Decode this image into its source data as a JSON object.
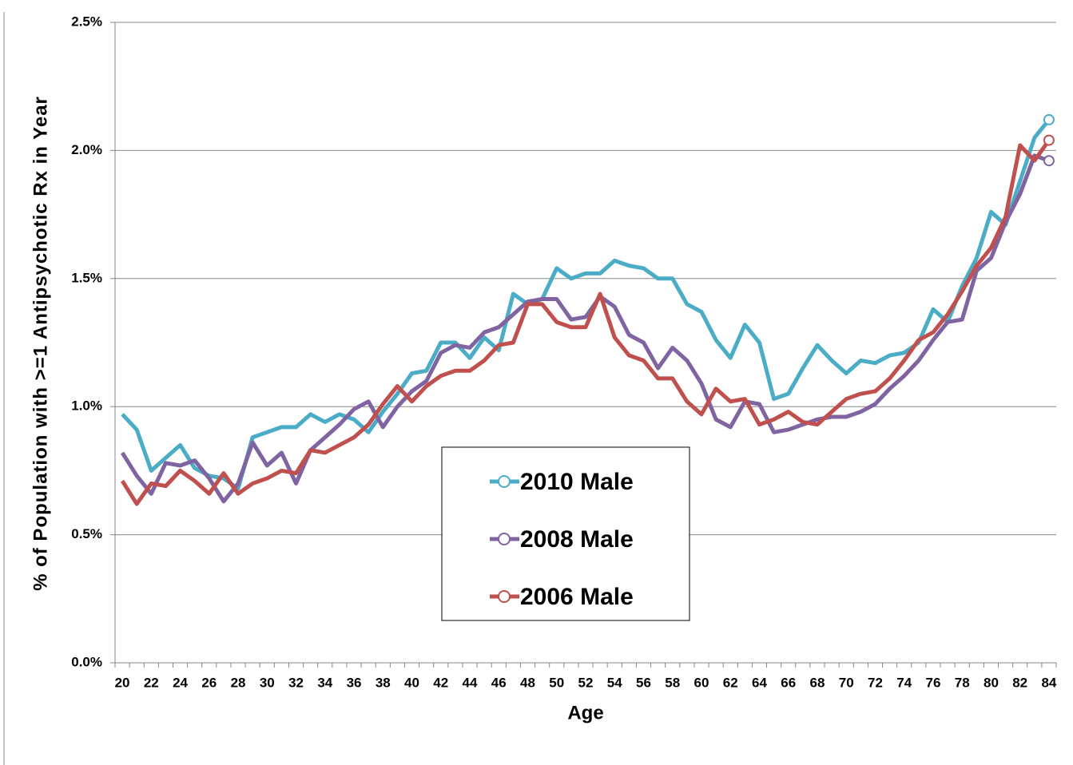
{
  "chart_data": {
    "type": "line",
    "y_label": "% of Population with >=1 Antipsychotic Rx in Year",
    "x_label": "Age",
    "categories": [
      "20",
      null,
      "22",
      null,
      "24",
      null,
      "26",
      null,
      "28",
      null,
      "30",
      null,
      "32",
      null,
      "34",
      null,
      "36",
      null,
      "38",
      null,
      "40",
      null,
      "42",
      null,
      "44",
      null,
      "46",
      null,
      "48",
      null,
      "50",
      null,
      "52",
      null,
      "54",
      null,
      "56",
      null,
      "58",
      null,
      "60",
      null,
      "62",
      null,
      "64",
      null,
      "66",
      null,
      "68",
      null,
      "70",
      null,
      "72",
      null,
      "74",
      null,
      "76",
      null,
      "78",
      null,
      "80",
      null,
      "82",
      null,
      "84"
    ],
    "series": [
      {
        "name": "2010 Male",
        "color": "#4bacc6",
        "values": [
          0.97,
          0.91,
          0.75,
          0.8,
          0.85,
          0.76,
          0.73,
          0.72,
          0.68,
          0.88,
          0.9,
          0.92,
          0.92,
          0.97,
          0.94,
          0.97,
          0.95,
          0.9,
          0.98,
          1.05,
          1.13,
          1.14,
          1.25,
          1.25,
          1.19,
          1.27,
          1.22,
          1.44,
          1.4,
          1.42,
          1.54,
          1.5,
          1.52,
          1.52,
          1.57,
          1.55,
          1.54,
          1.5,
          1.5,
          1.4,
          1.37,
          1.26,
          1.19,
          1.32,
          1.25,
          1.03,
          1.05,
          1.15,
          1.24,
          1.18,
          1.13,
          1.18,
          1.17,
          1.2,
          1.21,
          1.25,
          1.38,
          1.33,
          1.47,
          1.58,
          1.76,
          1.71,
          1.88,
          2.05,
          2.12
        ]
      },
      {
        "name": "2008 Male",
        "color": "#8064a2",
        "values": [
          0.82,
          0.73,
          0.66,
          0.78,
          0.77,
          0.79,
          0.72,
          0.63,
          0.7,
          0.86,
          0.77,
          0.82,
          0.7,
          0.83,
          0.88,
          0.93,
          0.99,
          1.02,
          0.92,
          1.0,
          1.06,
          1.1,
          1.21,
          1.24,
          1.23,
          1.29,
          1.31,
          1.36,
          1.41,
          1.42,
          1.42,
          1.34,
          1.35,
          1.43,
          1.39,
          1.28,
          1.25,
          1.15,
          1.23,
          1.18,
          1.09,
          0.95,
          0.92,
          1.02,
          1.01,
          0.9,
          0.91,
          0.93,
          0.95,
          0.96,
          0.96,
          0.98,
          1.01,
          1.07,
          1.12,
          1.18,
          1.26,
          1.33,
          1.34,
          1.53,
          1.58,
          1.72,
          1.83,
          1.98,
          1.96
        ]
      },
      {
        "name": "2006 Male",
        "color": "#c0504d",
        "values": [
          0.71,
          0.62,
          0.7,
          0.69,
          0.75,
          0.71,
          0.66,
          0.74,
          0.66,
          0.7,
          0.72,
          0.75,
          0.74,
          0.83,
          0.82,
          0.85,
          0.88,
          0.93,
          1.01,
          1.08,
          1.02,
          1.08,
          1.12,
          1.14,
          1.14,
          1.18,
          1.24,
          1.25,
          1.4,
          1.4,
          1.33,
          1.31,
          1.31,
          1.44,
          1.27,
          1.2,
          1.18,
          1.11,
          1.11,
          1.02,
          0.97,
          1.07,
          1.02,
          1.03,
          0.93,
          0.95,
          0.98,
          0.94,
          0.93,
          0.98,
          1.03,
          1.05,
          1.06,
          1.11,
          1.18,
          1.26,
          1.29,
          1.36,
          1.45,
          1.55,
          1.62,
          1.74,
          2.02,
          1.96,
          2.04
        ]
      }
    ],
    "ylim": [
      0,
      2.5
    ],
    "yticks": [
      {
        "value": 0,
        "label": "0.0%"
      },
      {
        "value": 0.5,
        "label": "0.5%"
      },
      {
        "value": 1,
        "label": "1.0%"
      },
      {
        "value": 1.5,
        "label": "1.5%"
      },
      {
        "value": 2,
        "label": "2.0%"
      },
      {
        "value": 2.5,
        "label": "2.5%"
      }
    ],
    "grid": true
  }
}
